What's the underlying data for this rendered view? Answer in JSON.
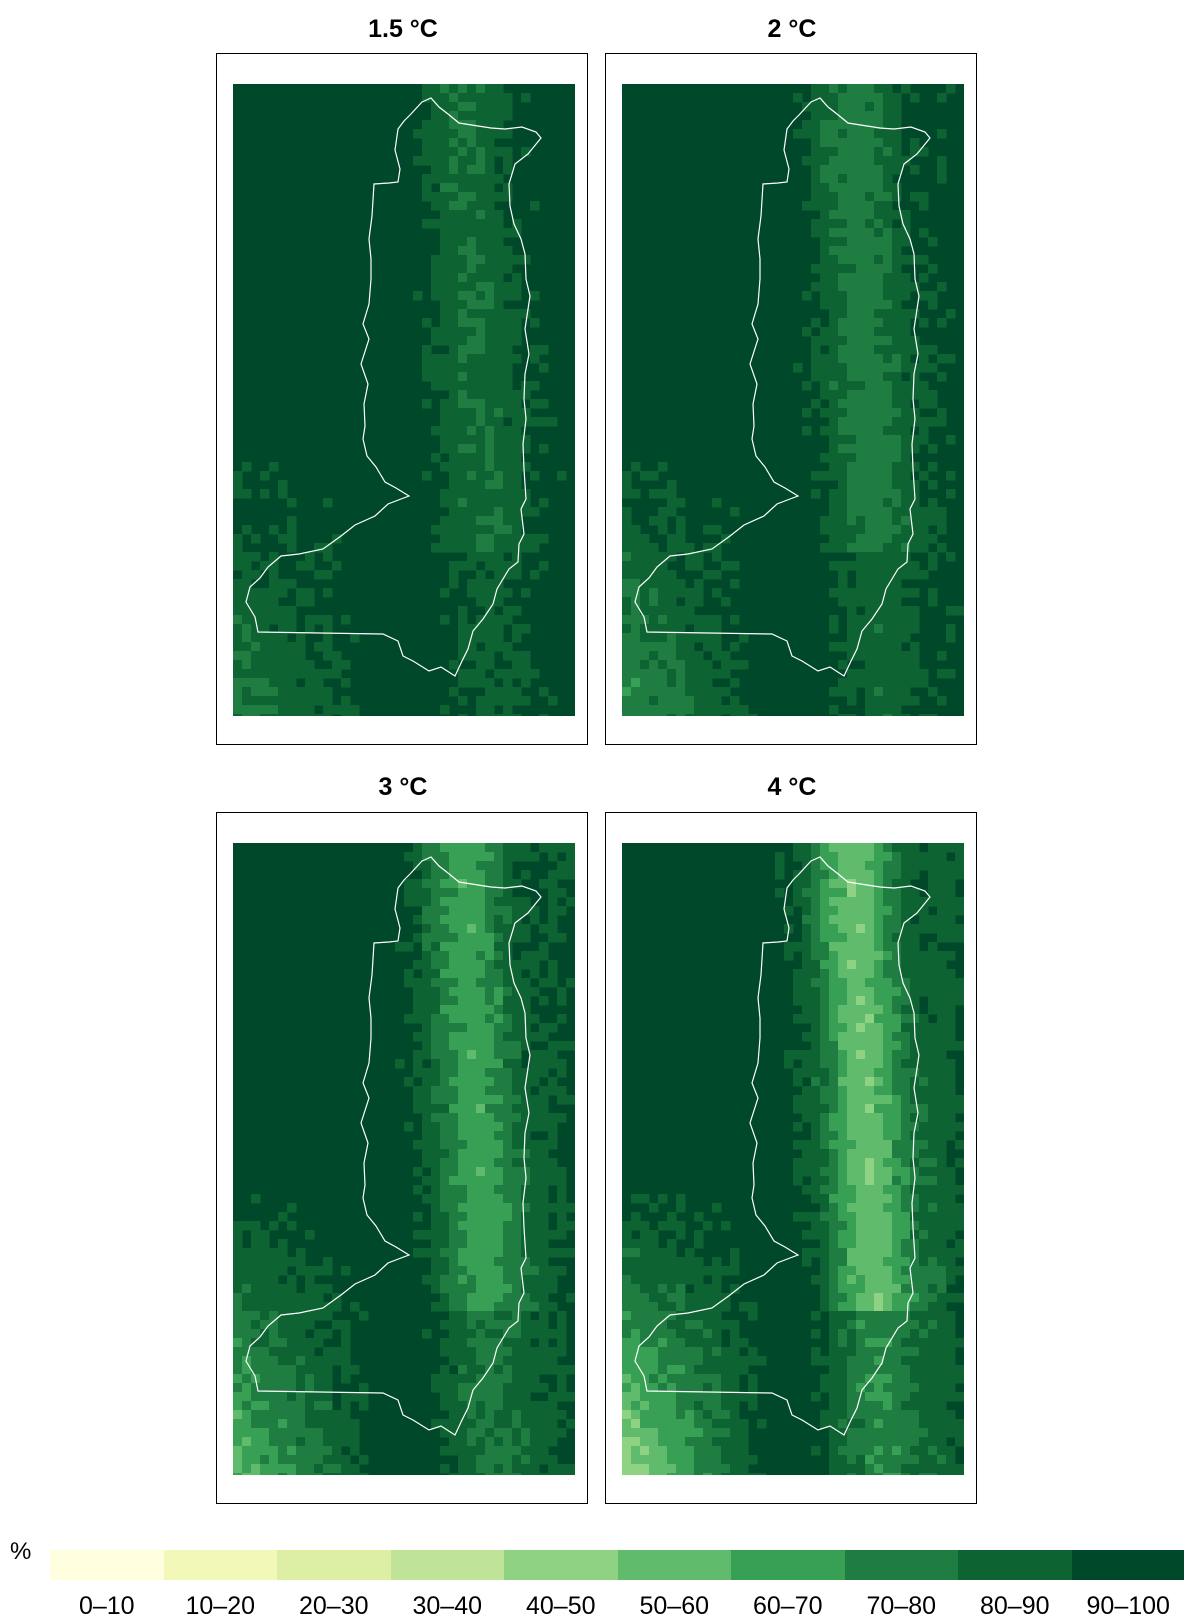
{
  "panels": [
    {
      "title": "1.5 °C",
      "scenario": 1.5
    },
    {
      "title": "2 °C",
      "scenario": 2
    },
    {
      "title": "3 °C",
      "scenario": 3
    },
    {
      "title": "4 °C",
      "scenario": 4
    }
  ],
  "legend": {
    "unit": "%",
    "classes": [
      {
        "label": "0–10",
        "color": "#ffffe0"
      },
      {
        "label": "10–20",
        "color": "#f2f9b8"
      },
      {
        "label": "20–30",
        "color": "#dcefa4"
      },
      {
        "label": "30–40",
        "color": "#bfe397"
      },
      {
        "label": "40–50",
        "color": "#8fd283"
      },
      {
        "label": "50–60",
        "color": "#60bb6c"
      },
      {
        "label": "60–70",
        "color": "#38a055"
      },
      {
        "label": "70–80",
        "color": "#1f7d42"
      },
      {
        "label": "80–90",
        "color": "#0e6332"
      },
      {
        "label": "90–100",
        "color": "#00482a"
      }
    ]
  }
}
